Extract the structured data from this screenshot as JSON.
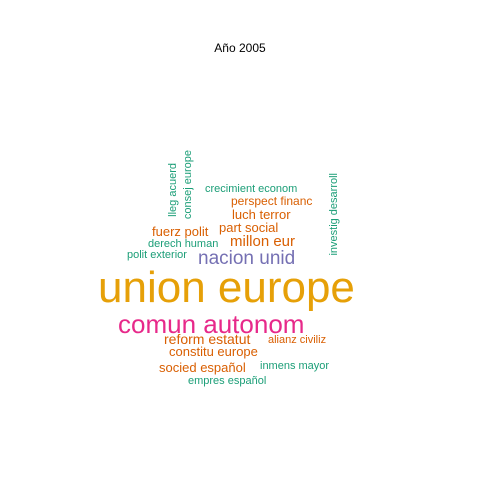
{
  "title": "Año 2005",
  "colors": {
    "orange": "#d95f02",
    "green": "#1b9e77",
    "purple": "#7570b3",
    "magenta": "#e7298a",
    "gold": "#e6a008"
  },
  "words": [
    {
      "id": "union-europe",
      "text": "union europe",
      "color": "gold"
    },
    {
      "id": "comun-autonom",
      "text": "comun autonom",
      "color": "magenta"
    },
    {
      "id": "nacion-unid",
      "text": "nacion unid",
      "color": "purple"
    },
    {
      "id": "millon-eur",
      "text": "millon eur",
      "color": "orange"
    },
    {
      "id": "part-social",
      "text": "part social",
      "color": "orange"
    },
    {
      "id": "luch-terror",
      "text": "luch terror",
      "color": "orange"
    },
    {
      "id": "perspect-financ",
      "text": "perspect financ",
      "color": "orange"
    },
    {
      "id": "crecimient-econom",
      "text": "crecimient econom",
      "color": "green"
    },
    {
      "id": "fuerz-polit",
      "text": "fuerz polit",
      "color": "orange"
    },
    {
      "id": "derech-human",
      "text": "derech human",
      "color": "green"
    },
    {
      "id": "polit-exterior",
      "text": "polit exterior",
      "color": "green"
    },
    {
      "id": "lleg-acuerd",
      "text": "lleg acuerd",
      "color": "green"
    },
    {
      "id": "consej-europe",
      "text": "consej europe",
      "color": "green"
    },
    {
      "id": "investig-desarroll",
      "text": "investig desarroll",
      "color": "green"
    },
    {
      "id": "reform-estatut",
      "text": "reform estatut",
      "color": "orange"
    },
    {
      "id": "alianz-civiliz",
      "text": "alianz civiliz",
      "color": "orange"
    },
    {
      "id": "constitu-europe",
      "text": "constitu europe",
      "color": "orange"
    },
    {
      "id": "socied-espanol",
      "text": "socied español",
      "color": "orange"
    },
    {
      "id": "inmens-mayor",
      "text": "inmens mayor",
      "color": "green"
    },
    {
      "id": "empres-espanol",
      "text": "empres español",
      "color": "green"
    }
  ]
}
